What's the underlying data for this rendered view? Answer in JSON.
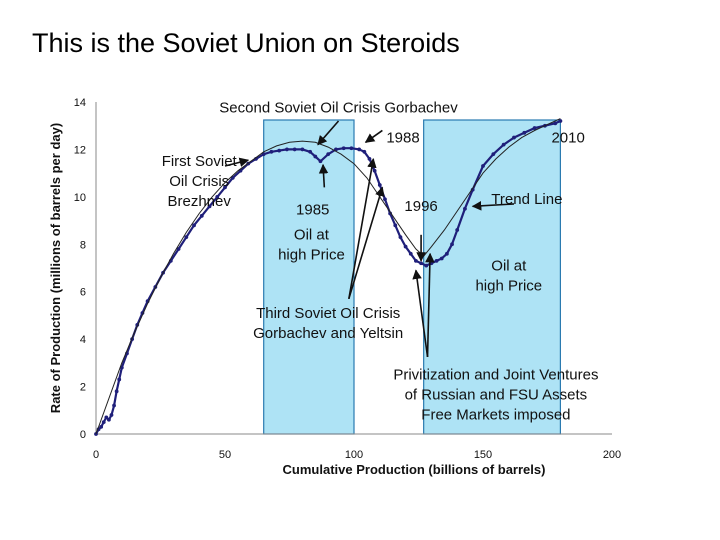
{
  "slide": {
    "title": "This is the Soviet Union on Steroids"
  },
  "chart_data": {
    "type": "line",
    "title": "",
    "xlabel": "Cumulative Production (billions of barrels)",
    "ylabel": "Rate of Production (millions of barrels per day)",
    "xlim": [
      0,
      200
    ],
    "ylim": [
      0,
      14
    ],
    "xticks": [
      0,
      50,
      100,
      150,
      200
    ],
    "yticks": [
      0,
      2,
      4,
      6,
      8,
      10,
      12,
      14
    ],
    "grid": false,
    "colors": {
      "actual": "#1f1f7a",
      "trend": "#222222",
      "shade": "#aee3f5",
      "shade_border": "#2a7ab0"
    },
    "shaded_regions": [
      {
        "x_from": 65,
        "x_to": 100
      },
      {
        "x_from": 127,
        "x_to": 180
      }
    ],
    "series": [
      {
        "name": "",
        "style": "line-with-markers",
        "x": [
          0,
          1,
          2,
          3,
          4,
          5,
          6,
          7,
          8,
          9,
          10,
          12,
          14,
          16,
          18,
          20,
          23,
          26,
          29,
          32,
          35,
          38,
          41,
          44,
          47,
          50,
          53,
          56,
          59,
          62,
          65,
          68,
          71,
          74,
          77,
          80,
          83,
          85,
          87,
          90,
          93,
          96,
          99,
          102,
          104,
          106,
          108,
          110,
          112,
          114,
          116,
          118,
          120,
          122,
          124,
          126,
          128,
          130,
          132,
          134,
          136,
          138,
          140,
          143,
          146,
          150,
          154,
          158,
          162,
          166,
          170,
          174,
          178,
          180
        ],
        "y": [
          0,
          0.2,
          0.3,
          0.5,
          0.7,
          0.6,
          0.8,
          1.2,
          1.8,
          2.3,
          2.8,
          3.4,
          4.0,
          4.6,
          5.1,
          5.6,
          6.2,
          6.8,
          7.3,
          7.8,
          8.3,
          8.8,
          9.2,
          9.6,
          10.0,
          10.4,
          10.8,
          11.1,
          11.4,
          11.6,
          11.8,
          11.9,
          11.95,
          12.0,
          12.0,
          12.0,
          11.9,
          11.7,
          11.5,
          11.8,
          12.0,
          12.05,
          12.05,
          12.0,
          11.9,
          11.6,
          11.1,
          10.5,
          9.9,
          9.3,
          8.8,
          8.3,
          7.9,
          7.6,
          7.3,
          7.2,
          7.1,
          7.2,
          7.3,
          7.4,
          7.6,
          8.0,
          8.6,
          9.5,
          10.3,
          11.3,
          11.8,
          12.2,
          12.5,
          12.7,
          12.9,
          13.0,
          13.1,
          13.2
        ]
      },
      {
        "name": "",
        "style": "thin-line",
        "x": [
          0,
          5,
          10,
          15,
          20,
          25,
          30,
          35,
          40,
          45,
          50,
          55,
          60,
          65,
          70,
          75,
          80,
          85,
          90,
          95,
          100,
          105,
          110,
          115,
          120,
          124,
          127,
          130,
          135,
          140,
          145,
          150,
          155,
          160,
          165,
          170,
          175,
          180
        ],
        "y": [
          0,
          1.5,
          3.0,
          4.3,
          5.5,
          6.6,
          7.6,
          8.5,
          9.3,
          10.0,
          10.6,
          11.1,
          11.5,
          11.9,
          12.15,
          12.3,
          12.35,
          12.3,
          12.1,
          11.8,
          11.4,
          10.8,
          10.0,
          9.2,
          8.4,
          7.8,
          7.5,
          7.9,
          8.6,
          9.4,
          10.2,
          11.0,
          11.6,
          12.1,
          12.5,
          12.8,
          13.05,
          13.3
        ]
      }
    ],
    "annotations": [
      {
        "lines": [
          "Second Soviet Oil Crisis Gorbachev"
        ],
        "x": 94,
        "y": 13.55,
        "anchor": "middle"
      },
      {
        "lines": [
          "First Soviet",
          "Oil Crisis",
          "Brezhnev"
        ],
        "x": 40,
        "y": 11.3,
        "anchor": "middle"
      },
      {
        "lines": [
          "1988"
        ],
        "x": 119,
        "y": 12.3,
        "anchor": "middle"
      },
      {
        "lines": [
          "2010"
        ],
        "x": 183,
        "y": 12.3,
        "anchor": "middle"
      },
      {
        "lines": [
          "Trend Line"
        ],
        "x": 167,
        "y": 9.7,
        "anchor": "middle"
      },
      {
        "lines": [
          "1985"
        ],
        "x": 84,
        "y": 9.25,
        "anchor": "middle"
      },
      {
        "lines": [
          "Oil at",
          "high Price"
        ],
        "x": 83.5,
        "y": 8.2,
        "anchor": "middle"
      },
      {
        "lines": [
          "1996"
        ],
        "x": 126,
        "y": 9.4,
        "anchor": "middle"
      },
      {
        "lines": [
          "Oil at",
          "high Price"
        ],
        "x": 160,
        "y": 6.9,
        "anchor": "middle"
      },
      {
        "lines": [
          "Third Soviet Oil Crisis",
          "Gorbachev and Yeltsin"
        ],
        "x": 90,
        "y": 4.9,
        "anchor": "middle"
      },
      {
        "lines": [
          "Privitization and Joint Ventures",
          "of Russian and FSU Assets",
          "Free Markets imposed"
        ],
        "x": 155,
        "y": 2.3,
        "anchor": "middle"
      }
    ],
    "arrows": [
      {
        "from": [
          94,
          13.2
        ],
        "to": [
          86,
          12.2
        ]
      },
      {
        "from": [
          111,
          12.8
        ],
        "to": [
          104.5,
          12.3
        ]
      },
      {
        "from": [
          50,
          11.3
        ],
        "to": [
          59,
          11.55
        ]
      },
      {
        "from": [
          88.5,
          10.4
        ],
        "to": [
          88,
          11.35
        ]
      },
      {
        "from": [
          162,
          9.7
        ],
        "to": [
          146,
          9.6
        ]
      },
      {
        "from": [
          98,
          5.7
        ],
        "to": [
          107.5,
          11.6
        ]
      },
      {
        "from": [
          98,
          5.7
        ],
        "to": [
          111,
          10.4
        ]
      },
      {
        "from": [
          126,
          8.4
        ],
        "to": [
          126,
          7.3
        ]
      },
      {
        "from": [
          128.5,
          3.25
        ],
        "to": [
          124,
          6.9
        ]
      },
      {
        "from": [
          128.5,
          3.25
        ],
        "to": [
          129.5,
          7.6
        ]
      }
    ]
  }
}
